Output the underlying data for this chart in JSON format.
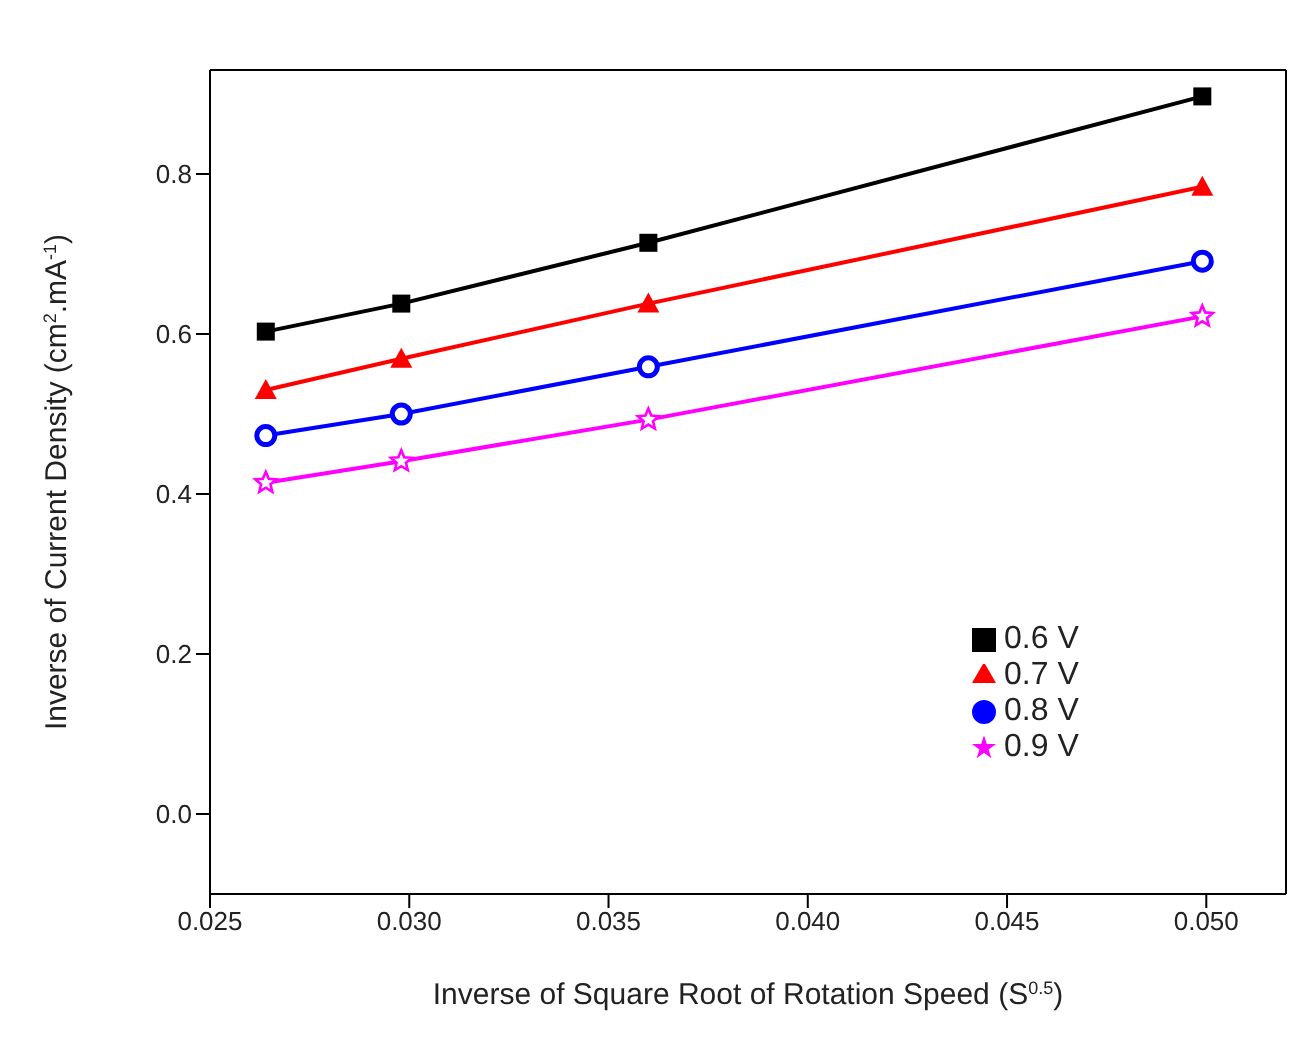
{
  "chart_data": {
    "type": "line",
    "xlabel": "Inverse of Square Root of Rotation Speed (S$^{0.5}$)",
    "ylabel": "Inverse of Current Density (cm$^{2}$.mA$^{-1}$)",
    "x": [
      0.0264,
      0.0298,
      0.036,
      0.0499
    ],
    "series": [
      {
        "name": "0.6 V",
        "color": "#000000",
        "marker": "square",
        "values": [
          0.603,
          0.638,
          0.714,
          0.897
        ]
      },
      {
        "name": "0.7 V",
        "color": "#ff0000",
        "marker": "triangle",
        "values": [
          0.53,
          0.569,
          0.638,
          0.784
        ]
      },
      {
        "name": "0.8 V",
        "color": "#0000ff",
        "marker": "circle",
        "values": [
          0.473,
          0.5,
          0.559,
          0.691
        ]
      },
      {
        "name": "0.9 V",
        "color": "#ff00ff",
        "marker": "star",
        "values": [
          0.414,
          0.441,
          0.493,
          0.622
        ]
      }
    ],
    "xlim": [
      0.025,
      0.052
    ],
    "xticks": [
      {
        "value": 0.025,
        "label": "0.025"
      },
      {
        "value": 0.03,
        "label": "0.030"
      },
      {
        "value": 0.035,
        "label": "0.035"
      },
      {
        "value": 0.04,
        "label": "0.040"
      },
      {
        "value": 0.045,
        "label": "0.045"
      },
      {
        "value": 0.05,
        "label": "0.050"
      }
    ],
    "ylim": [
      -0.1,
      0.93
    ],
    "yticks": [
      {
        "value": 0,
        "label": "0.0"
      },
      0.2,
      0.4,
      0.6,
      0.8
    ],
    "legend": "bottom right",
    "grid": false,
    "line_style": "solid"
  }
}
